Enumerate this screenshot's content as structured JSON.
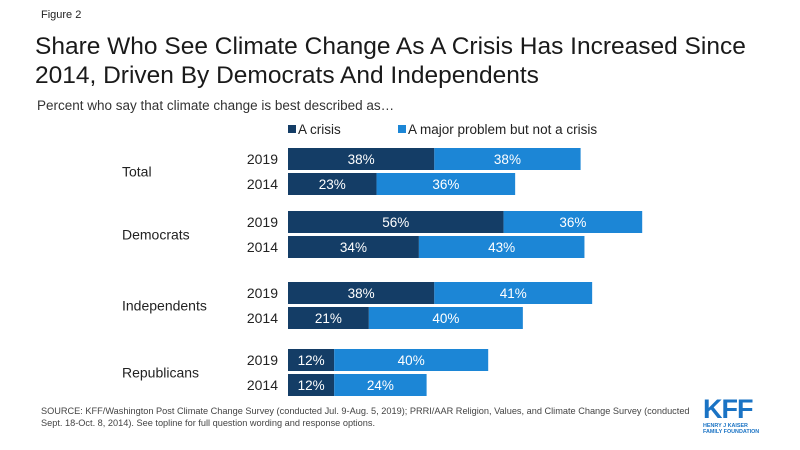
{
  "figure_label": "Figure 2",
  "title": "Share Who See Climate Change As A Crisis Has Increased Since 2014, Driven By Democrats And Independents",
  "subtitle": "Percent who say that climate change is best described as…",
  "source": "SOURCE: KFF/Washington Post Climate Change Survey (conducted Jul. 9-Aug. 5, 2019); PRRI/AAR Religion, Values, and Climate Change Survey (conducted Sept. 18-Oct. 8, 2014). See topline for full question wording and response options.",
  "logo": {
    "word": "KFF",
    "line1": "HENRY J KAISER",
    "line2": "FAMILY FOUNDATION"
  },
  "colors": {
    "crisis": "#143d66",
    "major_problem": "#1c86d6"
  },
  "chart_data": {
    "type": "bar",
    "orientation": "horizontal",
    "stacked": true,
    "legend_position": "top",
    "grid": false,
    "xlim": [
      0,
      100
    ],
    "groups": [
      {
        "name": "Total",
        "years": [
          "2019",
          "2014"
        ]
      },
      {
        "name": "Democrats",
        "years": [
          "2019",
          "2014"
        ]
      },
      {
        "name": "Independents",
        "years": [
          "2019",
          "2014"
        ]
      },
      {
        "name": "Republicans",
        "years": [
          "2019",
          "2014"
        ]
      }
    ],
    "series": [
      {
        "name": "A crisis",
        "values": [
          [
            38,
            23
          ],
          [
            56,
            34
          ],
          [
            38,
            21
          ],
          [
            12,
            12
          ]
        ]
      },
      {
        "name": "A major problem but not a crisis",
        "values": [
          [
            38,
            36
          ],
          [
            36,
            43
          ],
          [
            41,
            40
          ],
          [
            40,
            24
          ]
        ]
      }
    ]
  }
}
